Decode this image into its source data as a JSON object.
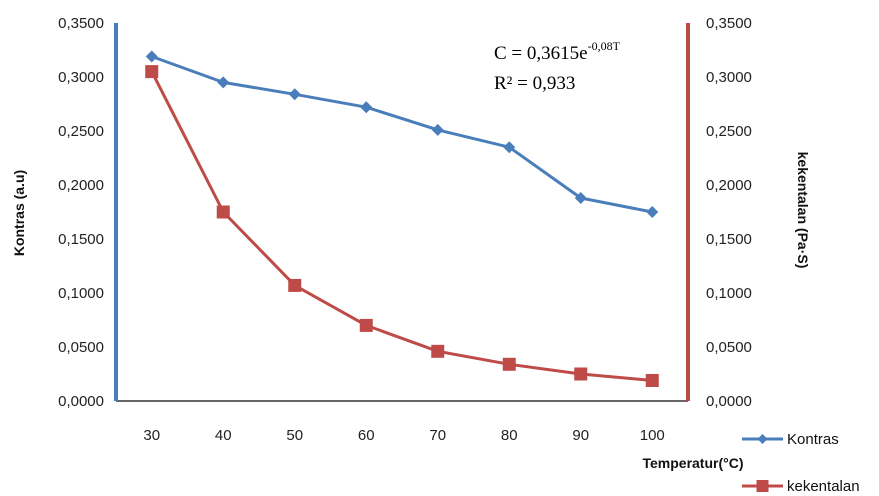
{
  "chart_data": {
    "type": "line",
    "title": "",
    "xlabel": "Temperatur(°C)",
    "ylabel": "Kontras (a.u)",
    "y2label": "kekentalan (Pa·S)",
    "x": [
      30,
      40,
      50,
      60,
      70,
      80,
      90,
      100
    ],
    "x_tick_labels": [
      "30",
      "40",
      "50",
      "60",
      "70",
      "80",
      "90",
      "100"
    ],
    "ylim": [
      0,
      0.35
    ],
    "y2lim": [
      0,
      0.35
    ],
    "y_tick_labels": [
      "0,0000",
      "0,0500",
      "0,1000",
      "0,1500",
      "0,2000",
      "0,2500",
      "0,3000",
      "0,3500"
    ],
    "y2_tick_labels": [
      "0,0000",
      "0,0500",
      "0,1000",
      "0,1500",
      "0,2000",
      "0,2500",
      "0,3000",
      "0,3500"
    ],
    "series": [
      {
        "name": "Kontras",
        "axis": "left",
        "marker": "diamond",
        "color": "#4a7ebb",
        "values": [
          0.319,
          0.295,
          0.284,
          0.272,
          0.251,
          0.235,
          0.188,
          0.175
        ]
      },
      {
        "name": "kekentalan",
        "axis": "right",
        "marker": "square",
        "color": "#be4b48",
        "values": [
          0.305,
          0.175,
          0.107,
          0.07,
          0.046,
          0.034,
          0.025,
          0.019
        ]
      }
    ],
    "annotation": {
      "eq_main": "C = 0,3615e",
      "eq_exp": "-0,08T",
      "r2": "R² = 0,933"
    },
    "legend_position": "bottom-right",
    "grid": false,
    "left_axis_color": "#4a7ebb",
    "right_axis_color": "#be4b48"
  }
}
